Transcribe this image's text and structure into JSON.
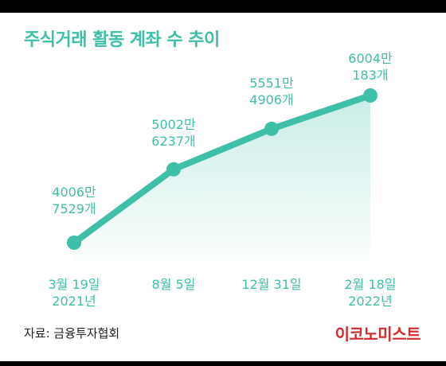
{
  "colors": {
    "accent": "#3fbfa8",
    "logo": "#d42a2a",
    "bar": "#000000"
  },
  "title": "주식거래 활동 계좌 수 추이",
  "source": "자료: 금융투자협회",
  "logo": "이코노미스트",
  "chart_data": {
    "type": "area",
    "title": "주식거래 활동 계좌 수 추이",
    "unit": "계좌",
    "x": [
      "3월 19일\n2021년",
      "8월 5일",
      "12월 31일",
      "2월 18일\n2022년"
    ],
    "values": [
      40067529,
      50026237,
      55514906,
      60040183
    ],
    "data_labels": [
      "4006만\n7529개",
      "5002만\n6237개",
      "5551만\n4906개",
      "6004만\n183개"
    ],
    "grid": false,
    "legend": "none"
  }
}
